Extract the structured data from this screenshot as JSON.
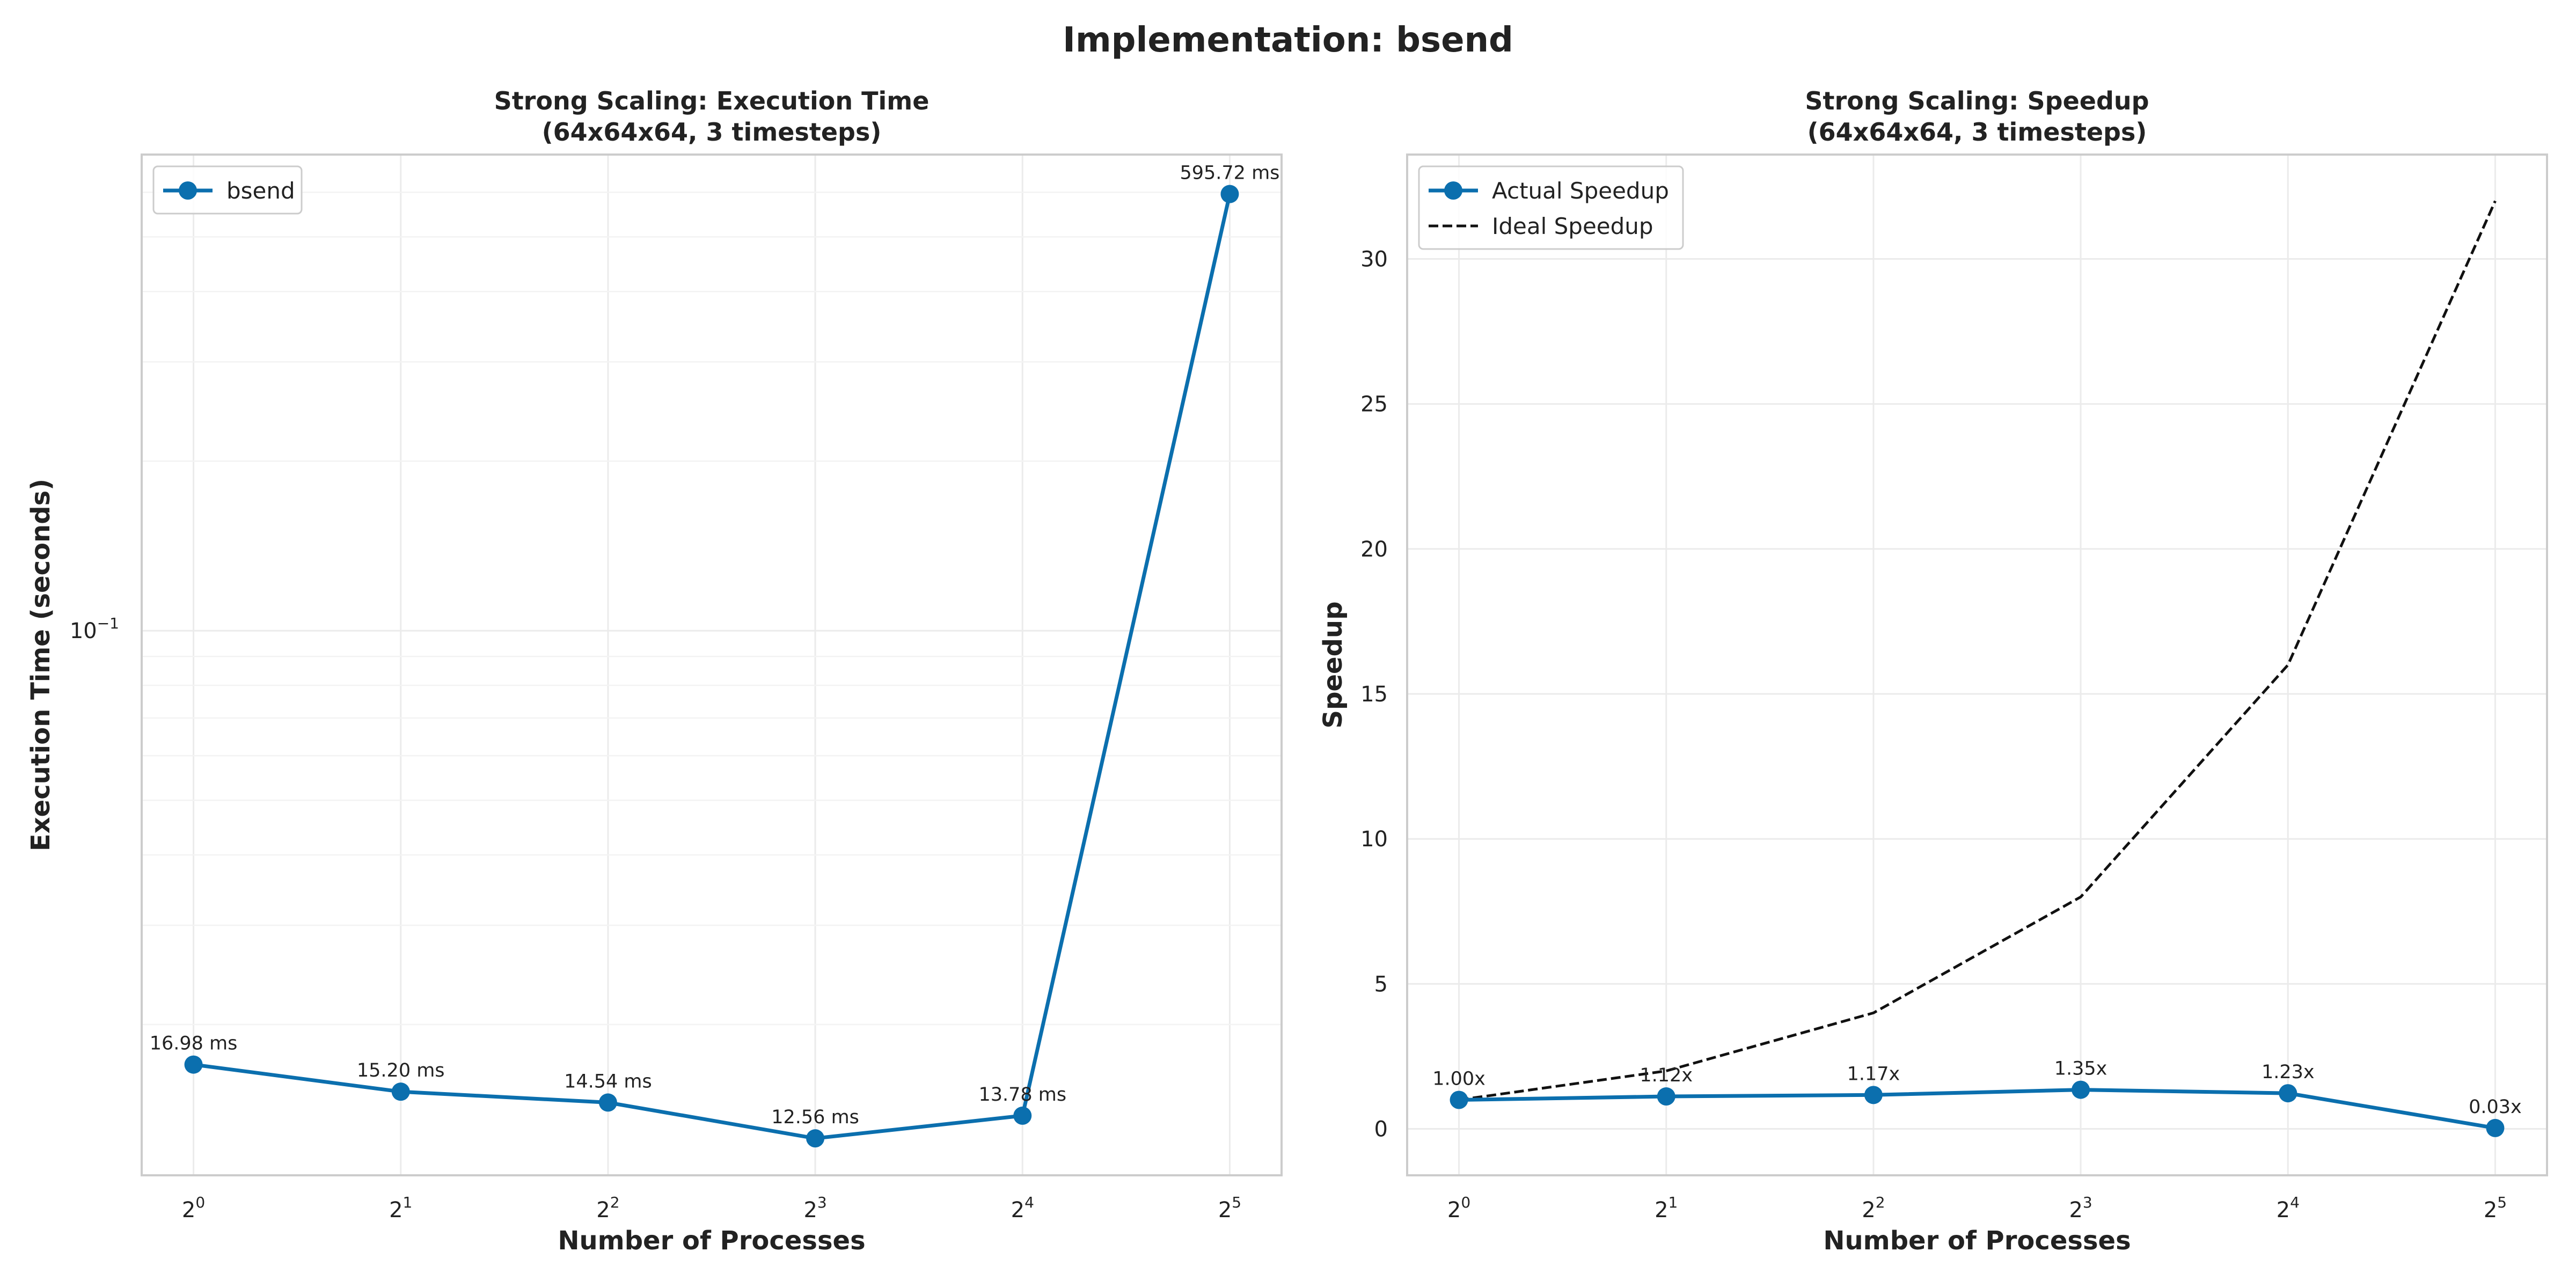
{
  "figure": {
    "title": "Implementation: bsend"
  },
  "chart_data": [
    {
      "type": "line",
      "title": "Strong Scaling: Execution Time\n(64x64x64, 3 timesteps)",
      "xlabel": "Number of Processes",
      "ylabel": "Execution Time (seconds)",
      "x_scale": "log2",
      "y_scale": "log10",
      "x": [
        1,
        2,
        4,
        8,
        16,
        32
      ],
      "x_tick_labels": [
        "2^0",
        "2^1",
        "2^2",
        "2^3",
        "2^4",
        "2^5"
      ],
      "y_tick_labels": [
        "10^-1"
      ],
      "ylim": [
        0.0108,
        0.7
      ],
      "grid": true,
      "legend_position": "top-left",
      "series": [
        {
          "name": "bsend",
          "color": "#0b6fae",
          "marker": "circle",
          "values": [
            0.01698,
            0.0152,
            0.01454,
            0.01256,
            0.01378,
            0.59572
          ],
          "data_labels": [
            "16.98 ms",
            "15.20 ms",
            "14.54 ms",
            "12.56 ms",
            "13.78 ms",
            "595.72 ms"
          ]
        }
      ]
    },
    {
      "type": "line",
      "title": "Strong Scaling: Speedup\n(64x64x64, 3 timesteps)",
      "xlabel": "Number of Processes",
      "ylabel": "Speedup",
      "x_scale": "log2",
      "y_scale": "linear",
      "x": [
        1,
        2,
        4,
        8,
        16,
        32
      ],
      "x_tick_labels": [
        "2^0",
        "2^1",
        "2^2",
        "2^3",
        "2^4",
        "2^5"
      ],
      "y_ticks": [
        0,
        5,
        10,
        15,
        20,
        25,
        30
      ],
      "ylim": [
        -1.6,
        33.6
      ],
      "grid": true,
      "legend_position": "top-left",
      "series": [
        {
          "name": "Actual Speedup",
          "color": "#0b6fae",
          "marker": "circle",
          "line_style": "solid",
          "values": [
            1.0,
            1.12,
            1.17,
            1.35,
            1.23,
            0.03
          ],
          "data_labels": [
            "1.00x",
            "1.12x",
            "1.17x",
            "1.35x",
            "1.23x",
            "0.03x"
          ]
        },
        {
          "name": "Ideal Speedup",
          "color": "#111111",
          "marker": "none",
          "line_style": "dashed",
          "values": [
            1,
            2,
            4,
            8,
            16,
            32
          ]
        }
      ]
    }
  ]
}
